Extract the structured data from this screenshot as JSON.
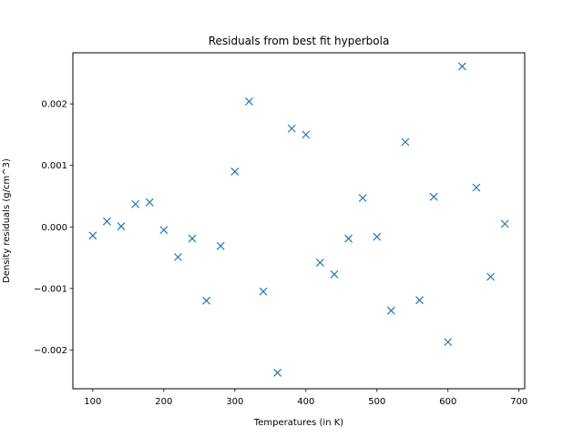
{
  "chart_data": {
    "type": "scatter",
    "title": "Residuals from best fit hyperbola",
    "xlabel": "Temperatures (in K)",
    "ylabel": "Density residuals (g/cm^3)",
    "xlim": [
      72,
      708
    ],
    "ylim": [
      -0.00263,
      0.00283
    ],
    "x_ticks": [
      100,
      200,
      300,
      400,
      500,
      600,
      700
    ],
    "x_tick_labels": [
      "100",
      "200",
      "300",
      "400",
      "500",
      "600",
      "700"
    ],
    "y_ticks": [
      -0.002,
      -0.001,
      0.0,
      0.001,
      0.002
    ],
    "y_tick_labels": [
      "−0.002",
      "−0.001",
      "0.000",
      "0.001",
      "0.002"
    ],
    "marker": "x",
    "marker_color": "#1f77b4",
    "grid": false,
    "series": [
      {
        "x": [
          100,
          120,
          140,
          160,
          180,
          200,
          220,
          240,
          260,
          280,
          300,
          320,
          340,
          360,
          380,
          400,
          420,
          440,
          460,
          480,
          500,
          520,
          540,
          560,
          580,
          600,
          620,
          640,
          660,
          680
        ],
        "y": [
          -0.00014,
          9e-05,
          1e-05,
          0.00037,
          0.0004,
          -5e-05,
          -0.00049,
          -0.00019,
          -0.0012,
          -0.00031,
          0.0009,
          0.00204,
          -0.00105,
          -0.00237,
          0.0016,
          0.0015,
          -0.00058,
          -0.00077,
          -0.00019,
          0.00047,
          -0.00016,
          -0.00136,
          0.00138,
          -0.00119,
          0.00049,
          -0.00187,
          0.00261,
          0.00064,
          -0.00081,
          5e-05
        ]
      }
    ]
  }
}
